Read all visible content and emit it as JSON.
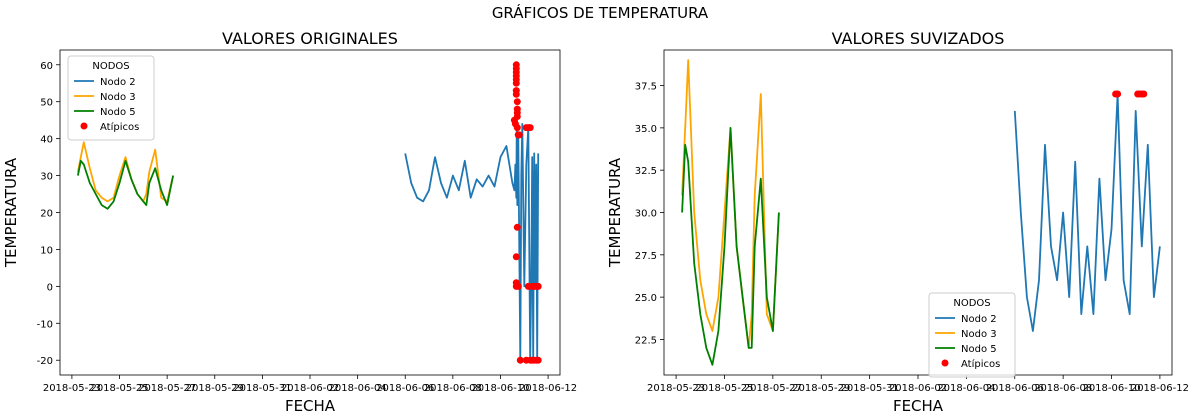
{
  "figure": {
    "suptitle": "GRÁFICOS DE TEMPERATURA"
  },
  "colors": {
    "nodo2": "#1f77b4",
    "nodo3": "#ffa500",
    "nodo5": "#008000",
    "atipicos": "#ff0000",
    "legend_edge": "#cccccc"
  },
  "chart_data": [
    {
      "type": "line",
      "title": "VALORES ORIGINALES",
      "xlabel": "FECHA",
      "ylabel": "TEMPERATURA",
      "xlim": [
        "2018-05-22T12:00",
        "2018-06-12T12:00"
      ],
      "ylim": [
        -24,
        64
      ],
      "x_ticks": [
        "2018-05-23",
        "2018-05-25",
        "2018-05-27",
        "2018-05-29",
        "2018-05-31",
        "2018-06-02",
        "2018-06-04",
        "2018-06-06",
        "2018-06-08",
        "2018-06-10",
        "2018-06-12"
      ],
      "y_ticks": [
        -20,
        -10,
        0,
        10,
        20,
        30,
        40,
        50,
        60
      ],
      "grid": false,
      "legend": {
        "title": "NODOS",
        "position": "upper-left"
      },
      "series": [
        {
          "name": "Nodo 2",
          "color": "#1f77b4",
          "kind": "line",
          "x": [
            "2018-06-06T00:00",
            "2018-06-06T06:00",
            "2018-06-06T12:00",
            "2018-06-06T18:00",
            "2018-06-07T00:00",
            "2018-06-07T06:00",
            "2018-06-07T12:00",
            "2018-06-07T18:00",
            "2018-06-08T00:00",
            "2018-06-08T06:00",
            "2018-06-08T12:00",
            "2018-06-08T18:00",
            "2018-06-09T00:00",
            "2018-06-09T06:00",
            "2018-06-09T12:00",
            "2018-06-09T18:00",
            "2018-06-10T00:00",
            "2018-06-10T06:00",
            "2018-06-10T12:00",
            "2018-06-10T14:00",
            "2018-06-10T15:00",
            "2018-06-10T16:00",
            "2018-06-10T16:30",
            "2018-06-10T17:00",
            "2018-06-10T18:00",
            "2018-06-10T20:00",
            "2018-06-10T21:00",
            "2018-06-10T22:00",
            "2018-06-11T00:00",
            "2018-06-11T02:00",
            "2018-06-11T04:00",
            "2018-06-11T06:00",
            "2018-06-11T07:00",
            "2018-06-11T08:00",
            "2018-06-11T09:00",
            "2018-06-11T10:00",
            "2018-06-11T11:00",
            "2018-06-11T12:00",
            "2018-06-11T13:00",
            "2018-06-11T14:00"
          ],
          "values": [
            36,
            28,
            24,
            23,
            26,
            35,
            28,
            24,
            30,
            26,
            34,
            24,
            29,
            27,
            30,
            27,
            35,
            38,
            28,
            26,
            33,
            24,
            45,
            22,
            40,
            -20,
            30,
            44,
            0,
            33,
            43,
            -20,
            0,
            35,
            -20,
            36,
            0,
            33,
            -20,
            36
          ]
        },
        {
          "name": "Nodo 3",
          "color": "#ffa500",
          "kind": "line",
          "x": [
            "2018-05-23T06:00",
            "2018-05-23T09:00",
            "2018-05-23T12:00",
            "2018-05-23T18:00",
            "2018-05-24T00:00",
            "2018-05-24T06:00",
            "2018-05-24T12:00",
            "2018-05-24T18:00",
            "2018-05-25T00:00",
            "2018-05-25T06:00",
            "2018-05-25T12:00",
            "2018-05-25T18:00",
            "2018-05-26T00:00",
            "2018-05-26T03:00",
            "2018-05-26T06:00",
            "2018-05-26T12:00",
            "2018-05-26T18:00",
            "2018-05-27T00:00",
            "2018-05-27T06:00"
          ],
          "values": [
            31,
            35,
            39,
            32,
            26,
            24,
            23,
            24,
            30,
            35,
            29,
            25,
            23,
            25,
            31,
            37,
            24,
            23,
            30
          ]
        },
        {
          "name": "Nodo 5",
          "color": "#008000",
          "kind": "line",
          "x": [
            "2018-05-23T06:00",
            "2018-05-23T09:00",
            "2018-05-23T12:00",
            "2018-05-23T18:00",
            "2018-05-24T00:00",
            "2018-05-24T06:00",
            "2018-05-24T12:00",
            "2018-05-24T18:00",
            "2018-05-25T00:00",
            "2018-05-25T06:00",
            "2018-05-25T12:00",
            "2018-05-25T18:00",
            "2018-05-26T00:00",
            "2018-05-26T03:00",
            "2018-05-26T06:00",
            "2018-05-26T12:00",
            "2018-05-26T18:00",
            "2018-05-27T00:00",
            "2018-05-27T06:00"
          ],
          "values": [
            30,
            34,
            33,
            28,
            25,
            22,
            21,
            23,
            28,
            34,
            29,
            25,
            23,
            22,
            28,
            32,
            26,
            22,
            30
          ]
        },
        {
          "name": "Atípicos",
          "color": "#ff0000",
          "kind": "scatter",
          "x": [
            "2018-06-10T14:00",
            "2018-06-10T15:00",
            "2018-06-10T16:00",
            "2018-06-10T16:00",
            "2018-06-10T16:00",
            "2018-06-10T16:00",
            "2018-06-10T16:00",
            "2018-06-10T16:00",
            "2018-06-10T16:00",
            "2018-06-10T16:00",
            "2018-06-10T17:00",
            "2018-06-10T17:00",
            "2018-06-10T17:00",
            "2018-06-10T17:00",
            "2018-06-10T17:00",
            "2018-06-10T18:00",
            "2018-06-10T18:00",
            "2018-06-10T19:00",
            "2018-06-10T17:00",
            "2018-06-10T16:00",
            "2018-06-10T16:00",
            "2018-06-10T16:00",
            "2018-06-10T18:00",
            "2018-06-10T20:00",
            "2018-06-11T02:00",
            "2018-06-11T04:00",
            "2018-06-11T06:00",
            "2018-06-11T08:00",
            "2018-06-11T10:00",
            "2018-06-11T12:00",
            "2018-06-11T14:00",
            "2018-06-11T02:00",
            "2018-06-11T06:00",
            "2018-06-11T10:00",
            "2018-06-11T14:00",
            "2018-06-11T04:00",
            "2018-06-11T08:00",
            "2018-06-11T12:00"
          ],
          "values": [
            45,
            44,
            60,
            59,
            58,
            57,
            56,
            55,
            53,
            52,
            50,
            48,
            47,
            46,
            43,
            41,
            41,
            41,
            16,
            8,
            1,
            0,
            0,
            -20,
            43,
            43,
            43,
            0,
            0,
            0,
            0,
            -20,
            -20,
            -20,
            -20,
            0,
            -20,
            -20
          ]
        }
      ]
    },
    {
      "type": "line",
      "title": "VALORES SUVIZADOS",
      "xlabel": "FECHA",
      "ylabel": "TEMPERATURA",
      "xlim": [
        "2018-05-22T12:00",
        "2018-06-12T12:00"
      ],
      "ylim": [
        20.4,
        39.6
      ],
      "x_ticks": [
        "2018-05-23",
        "2018-05-25",
        "2018-05-27",
        "2018-05-29",
        "2018-05-31",
        "2018-06-02",
        "2018-06-04",
        "2018-06-06",
        "2018-06-08",
        "2018-06-10",
        "2018-06-12"
      ],
      "y_ticks": [
        22.5,
        25.0,
        27.5,
        30.0,
        32.5,
        35.0,
        37.5
      ],
      "grid": false,
      "legend": {
        "title": "NODOS",
        "position": "lower-center"
      },
      "series": [
        {
          "name": "Nodo 2",
          "color": "#1f77b4",
          "kind": "line",
          "x": [
            "2018-06-06T00:00",
            "2018-06-06T06:00",
            "2018-06-06T12:00",
            "2018-06-06T18:00",
            "2018-06-07T00:00",
            "2018-06-07T06:00",
            "2018-06-07T12:00",
            "2018-06-07T18:00",
            "2018-06-08T00:00",
            "2018-06-08T06:00",
            "2018-06-08T12:00",
            "2018-06-08T18:00",
            "2018-06-09T00:00",
            "2018-06-09T06:00",
            "2018-06-09T12:00",
            "2018-06-09T18:00",
            "2018-06-10T00:00",
            "2018-06-10T06:00",
            "2018-06-10T12:00",
            "2018-06-10T18:00",
            "2018-06-11T00:00",
            "2018-06-11T06:00",
            "2018-06-11T12:00",
            "2018-06-11T18:00",
            "2018-06-12T00:00"
          ],
          "values": [
            36,
            30,
            25,
            23,
            26,
            34,
            28,
            26,
            30,
            25,
            33,
            24,
            28,
            24,
            32,
            26,
            29,
            37,
            26,
            24,
            36,
            28,
            34,
            25,
            28
          ]
        },
        {
          "name": "Nodo 3",
          "color": "#ffa500",
          "kind": "line",
          "x": [
            "2018-05-23T06:00",
            "2018-05-23T09:00",
            "2018-05-23T12:00",
            "2018-05-23T18:00",
            "2018-05-24T00:00",
            "2018-05-24T06:00",
            "2018-05-24T12:00",
            "2018-05-24T18:00",
            "2018-05-25T00:00",
            "2018-05-25T06:00",
            "2018-05-25T12:00",
            "2018-05-25T18:00",
            "2018-05-26T00:00",
            "2018-05-26T03:00",
            "2018-05-26T06:00",
            "2018-05-26T12:00",
            "2018-05-26T18:00",
            "2018-05-27T00:00",
            "2018-05-27T06:00"
          ],
          "values": [
            31,
            35,
            39,
            30,
            26,
            24,
            23,
            25,
            30,
            35,
            28,
            25,
            22,
            24,
            31,
            37,
            24,
            23,
            30
          ]
        },
        {
          "name": "Nodo 5",
          "color": "#008000",
          "kind": "line",
          "x": [
            "2018-05-23T06:00",
            "2018-05-23T09:00",
            "2018-05-23T12:00",
            "2018-05-23T18:00",
            "2018-05-24T00:00",
            "2018-05-24T06:00",
            "2018-05-24T12:00",
            "2018-05-24T18:00",
            "2018-05-25T00:00",
            "2018-05-25T06:00",
            "2018-05-25T12:00",
            "2018-05-25T18:00",
            "2018-05-26T00:00",
            "2018-05-26T03:00",
            "2018-05-26T06:00",
            "2018-05-26T12:00",
            "2018-05-26T18:00",
            "2018-05-27T00:00",
            "2018-05-27T06:00"
          ],
          "values": [
            30,
            34,
            33,
            27,
            24,
            22,
            21,
            23,
            28,
            35,
            28,
            25,
            22,
            22,
            28,
            32,
            25,
            23,
            30
          ]
        },
        {
          "name": "Atípicos",
          "color": "#ff0000",
          "kind": "scatter",
          "x": [
            "2018-06-10T04:00",
            "2018-06-10T06:00",
            "2018-06-11T02:00",
            "2018-06-11T04:00",
            "2018-06-11T06:00",
            "2018-06-11T08:00"
          ],
          "values": [
            37,
            37,
            37,
            37,
            37,
            37
          ]
        }
      ]
    }
  ]
}
